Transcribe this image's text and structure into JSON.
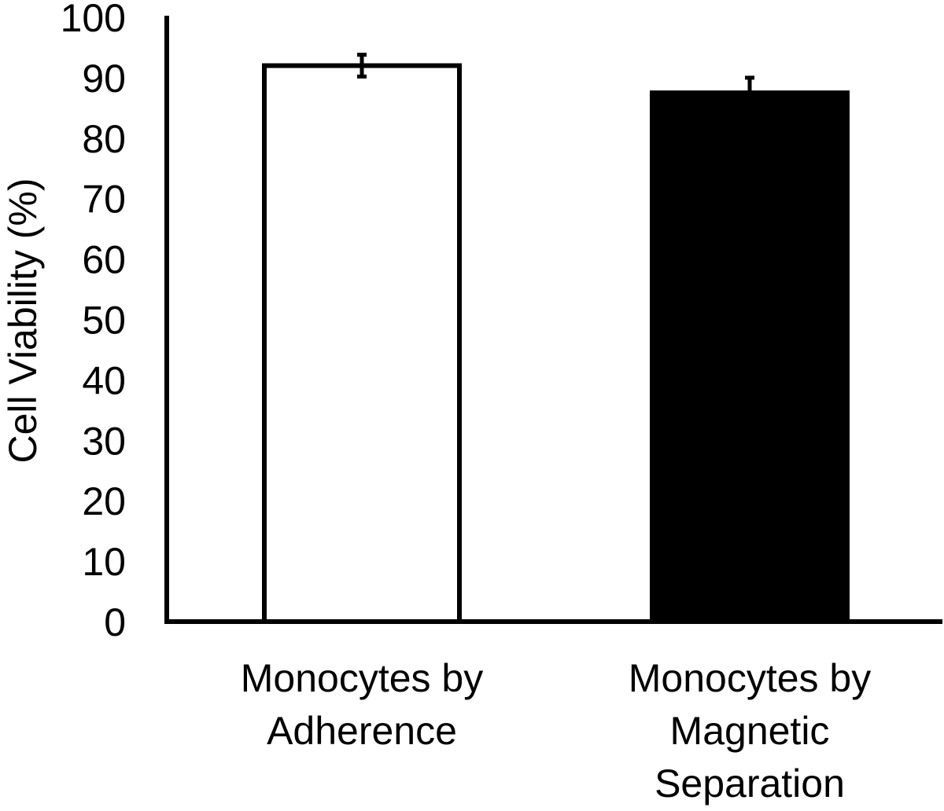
{
  "chart_data": {
    "type": "bar",
    "title": "",
    "xlabel": "",
    "ylabel": "Cell Viability  (%)",
    "ylim": [
      0,
      100
    ],
    "yticks": [
      "0",
      "10",
      "20",
      "30",
      "40",
      "50",
      "60",
      "70",
      "80",
      "90",
      "100"
    ],
    "grid": false,
    "categories": [
      [
        "Monocytes by",
        "Adherence"
      ],
      [
        "Monocytes by",
        "Magnetic",
        "Separation"
      ]
    ],
    "values": [
      92,
      87.5
    ],
    "errors": [
      1.8,
      2.5
    ],
    "bar_fill_colors": [
      "#ffffff",
      "#000000"
    ],
    "bar_stroke_color": "#000000"
  }
}
